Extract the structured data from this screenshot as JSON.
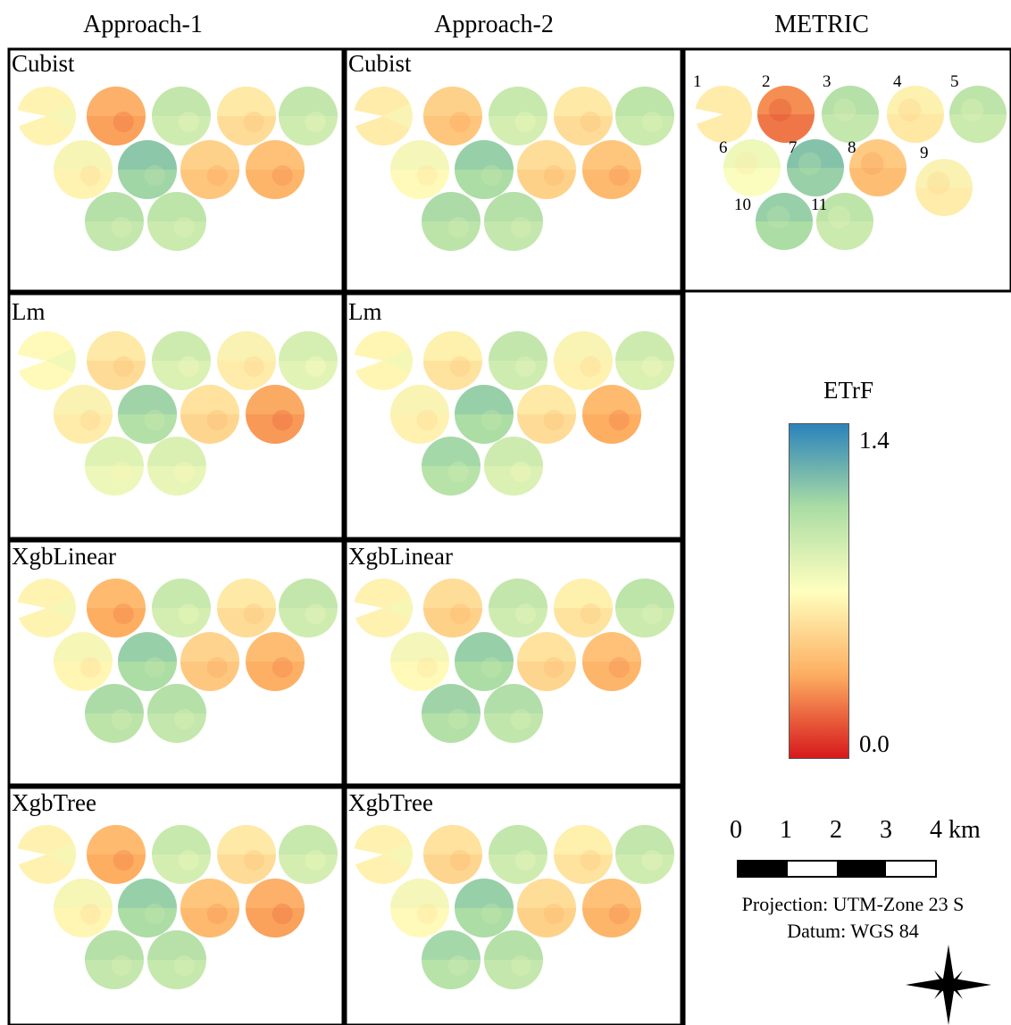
{
  "columns": [
    "Approach-1",
    "Approach-2",
    "METRIC"
  ],
  "rows": [
    "Cubist",
    "Lm",
    "XgbLinear",
    "XgbTree"
  ],
  "field_numbers": [
    "1",
    "2",
    "3",
    "4",
    "5",
    "6",
    "7",
    "8",
    "9",
    "10",
    "11"
  ],
  "legend": {
    "title": "ETrF",
    "max_label": "1.4",
    "min_label": "0.0",
    "range": [
      0.0,
      1.4
    ],
    "colors": [
      "#2b83ba",
      "#abdda4",
      "#ffffbf",
      "#fdae61",
      "#d7191c"
    ]
  },
  "scale_bar": {
    "labels": [
      "0",
      "1",
      "2",
      "3",
      "4 km"
    ]
  },
  "projection": "Projection: UTM-Zone 23 S",
  "datum": "Datum: WGS 84",
  "maps": {
    "metric": [
      0.62,
      0.22,
      0.95,
      0.6,
      0.92,
      0.72,
      1.1,
      0.42,
      0.62,
      1.05,
      0.92
    ],
    "Cubist": {
      "approach1": [
        0.65,
        0.32,
        0.9,
        0.55,
        0.9,
        0.65,
        1.08,
        0.45,
        0.38,
        0.95,
        0.92
      ],
      "approach2": [
        0.62,
        0.45,
        0.88,
        0.55,
        0.92,
        0.68,
        1.05,
        0.5,
        0.4,
        0.98,
        0.95
      ]
    },
    "Lm": {
      "approach1": [
        0.68,
        0.55,
        0.85,
        0.62,
        0.82,
        0.62,
        1.02,
        0.52,
        0.3,
        0.78,
        0.8
      ],
      "approach2": [
        0.66,
        0.58,
        0.9,
        0.64,
        0.85,
        0.64,
        1.05,
        0.55,
        0.35,
        1.0,
        0.85
      ]
    },
    "XgbLinear": {
      "approach1": [
        0.65,
        0.35,
        0.88,
        0.55,
        0.9,
        0.66,
        1.05,
        0.46,
        0.36,
        0.98,
        0.95
      ],
      "approach2": [
        0.64,
        0.5,
        0.9,
        0.58,
        0.92,
        0.68,
        1.05,
        0.52,
        0.38,
        1.02,
        0.96
      ]
    },
    "XgbTree": {
      "approach1": [
        0.64,
        0.35,
        0.88,
        0.55,
        0.88,
        0.66,
        1.05,
        0.4,
        0.32,
        0.95,
        0.94
      ],
      "approach2": [
        0.64,
        0.52,
        0.9,
        0.58,
        0.9,
        0.68,
        1.05,
        0.5,
        0.38,
        1.0,
        0.95
      ]
    }
  }
}
